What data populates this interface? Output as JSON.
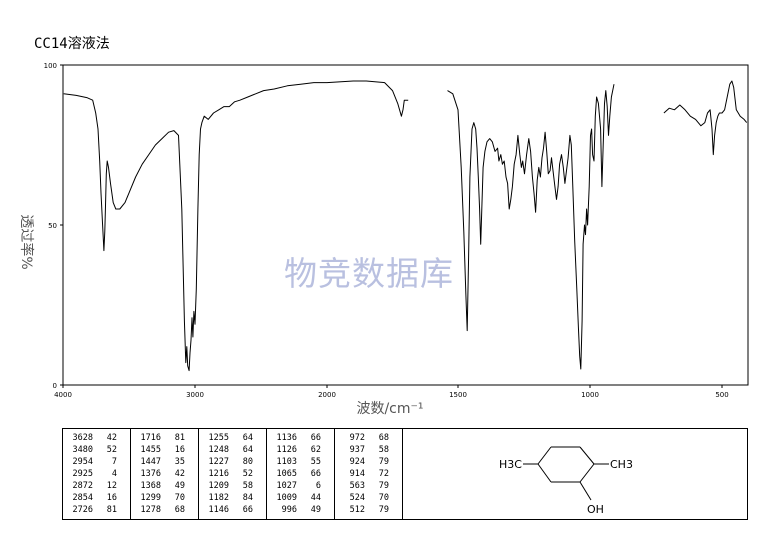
{
  "title": "CC14溶液法",
  "watermark": "物竞数据库",
  "chart_data": {
    "type": "line",
    "xlabel": "波数/cm⁻¹",
    "ylabel": "透过率%",
    "xlim": [
      4000,
      400
    ],
    "ylim": [
      0,
      100
    ],
    "x_ticks": [
      "4000",
      "3000",
      "2000",
      "1500",
      "1000",
      "500"
    ],
    "y_ticks": [
      "100",
      "50",
      "0"
    ],
    "grid": false,
    "series": [
      {
        "points": [
          [
            3995,
            91
          ],
          [
            3900,
            90.5
          ],
          [
            3820,
            89.8
          ],
          [
            3775,
            89
          ],
          [
            3752,
            85
          ],
          [
            3735,
            80
          ],
          [
            3722,
            70
          ],
          [
            3712,
            60
          ],
          [
            3700,
            50
          ],
          [
            3690,
            42
          ],
          [
            3683,
            48
          ],
          [
            3678,
            56
          ],
          [
            3672,
            66
          ],
          [
            3665,
            70
          ],
          [
            3655,
            68
          ],
          [
            3640,
            63
          ],
          [
            3620,
            57
          ],
          [
            3600,
            55
          ],
          [
            3570,
            55
          ],
          [
            3530,
            57
          ],
          [
            3490,
            61
          ],
          [
            3450,
            65
          ],
          [
            3400,
            69
          ],
          [
            3350,
            72
          ],
          [
            3300,
            75
          ],
          [
            3250,
            77
          ],
          [
            3200,
            79
          ],
          [
            3160,
            79.5
          ],
          [
            3125,
            78
          ],
          [
            3100,
            55
          ],
          [
            3080,
            20
          ],
          [
            3070,
            7
          ],
          [
            3062,
            12
          ],
          [
            3055,
            6
          ],
          [
            3045,
            4.5
          ],
          [
            3038,
            10
          ],
          [
            3030,
            14
          ],
          [
            3023,
            21
          ],
          [
            3016,
            15
          ],
          [
            3008,
            23
          ],
          [
            3000,
            19
          ],
          [
            2990,
            30
          ],
          [
            2978,
            55
          ],
          [
            2968,
            72
          ],
          [
            2958,
            80
          ],
          [
            2948,
            82
          ],
          [
            2930,
            84
          ],
          [
            2900,
            83
          ],
          [
            2860,
            85
          ],
          [
            2820,
            86
          ],
          [
            2780,
            87
          ],
          [
            2740,
            87
          ],
          [
            2700,
            88.5
          ],
          [
            2660,
            89
          ],
          [
            2600,
            90
          ],
          [
            2540,
            91
          ],
          [
            2480,
            92
          ],
          [
            2400,
            92.5
          ],
          [
            2300,
            93.5
          ],
          [
            2200,
            94
          ],
          [
            2100,
            94.5
          ],
          [
            2000,
            94.5
          ],
          [
            1900,
            95
          ],
          [
            1850,
            95
          ],
          [
            1780,
            94.5
          ],
          [
            1750,
            92
          ],
          [
            1730,
            88
          ],
          [
            1716,
            84
          ],
          [
            1710,
            86
          ],
          [
            1705,
            89
          ],
          [
            1690,
            89
          ]
        ]
      },
      {
        "points": [
          [
            1540,
            92
          ],
          [
            1520,
            91
          ],
          [
            1500,
            86
          ],
          [
            1488,
            68
          ],
          [
            1478,
            48
          ],
          [
            1470,
            28
          ],
          [
            1465,
            17
          ],
          [
            1460,
            40
          ],
          [
            1455,
            65
          ],
          [
            1447,
            80
          ],
          [
            1440,
            82
          ],
          [
            1433,
            80
          ],
          [
            1428,
            74
          ],
          [
            1423,
            65
          ],
          [
            1418,
            55
          ],
          [
            1414,
            44
          ],
          [
            1410,
            55
          ],
          [
            1405,
            68
          ],
          [
            1398,
            73
          ],
          [
            1390,
            76
          ],
          [
            1380,
            77
          ],
          [
            1370,
            76
          ],
          [
            1360,
            73
          ],
          [
            1350,
            74
          ],
          [
            1345,
            70
          ],
          [
            1338,
            72
          ],
          [
            1332,
            69
          ],
          [
            1325,
            70
          ],
          [
            1318,
            65
          ],
          [
            1312,
            63
          ],
          [
            1306,
            55
          ],
          [
            1300,
            58
          ],
          [
            1294,
            62
          ],
          [
            1287,
            69
          ],
          [
            1280,
            72
          ],
          [
            1273,
            78
          ],
          [
            1266,
            72
          ],
          [
            1260,
            68
          ],
          [
            1255,
            70
          ],
          [
            1248,
            66
          ],
          [
            1240,
            72
          ],
          [
            1232,
            77
          ],
          [
            1225,
            73
          ],
          [
            1218,
            65
          ],
          [
            1212,
            60
          ],
          [
            1206,
            54
          ],
          [
            1200,
            64
          ],
          [
            1194,
            68
          ],
          [
            1188,
            65
          ],
          [
            1182,
            71
          ],
          [
            1176,
            74
          ],
          [
            1170,
            79
          ],
          [
            1164,
            73
          ],
          [
            1158,
            66
          ],
          [
            1151,
            67
          ],
          [
            1146,
            71
          ],
          [
            1140,
            67
          ],
          [
            1133,
            62
          ],
          [
            1127,
            58
          ],
          [
            1121,
            62
          ],
          [
            1115,
            69
          ],
          [
            1108,
            72
          ],
          [
            1101,
            68
          ],
          [
            1095,
            63
          ],
          [
            1089,
            67
          ],
          [
            1083,
            71
          ],
          [
            1076,
            78
          ],
          [
            1071,
            75
          ],
          [
            1065,
            62
          ],
          [
            1058,
            45
          ],
          [
            1050,
            30
          ],
          [
            1044,
            18
          ],
          [
            1039,
            9
          ],
          [
            1035,
            5
          ],
          [
            1030,
            20
          ],
          [
            1026,
            44
          ],
          [
            1021,
            50
          ],
          [
            1017,
            47
          ],
          [
            1013,
            55
          ],
          [
            1009,
            50
          ],
          [
            1003,
            62
          ],
          [
            998,
            78
          ],
          [
            994,
            80
          ],
          [
            990,
            72
          ],
          [
            985,
            70
          ],
          [
            980,
            84
          ],
          [
            975,
            90
          ],
          [
            968,
            88
          ],
          [
            960,
            80
          ],
          [
            955,
            62
          ],
          [
            950,
            75
          ],
          [
            945,
            88
          ],
          [
            940,
            92
          ],
          [
            935,
            87
          ],
          [
            930,
            78
          ],
          [
            925,
            84
          ],
          [
            919,
            90
          ],
          [
            914,
            92
          ],
          [
            909,
            94
          ]
        ]
      },
      {
        "points": [
          [
            720,
            85
          ],
          [
            700,
            86.5
          ],
          [
            680,
            86
          ],
          [
            660,
            87.5
          ],
          [
            640,
            86
          ],
          [
            620,
            84
          ],
          [
            600,
            83
          ],
          [
            580,
            81
          ],
          [
            565,
            82
          ],
          [
            555,
            85
          ],
          [
            545,
            86
          ],
          [
            538,
            80
          ],
          [
            533,
            72
          ],
          [
            528,
            78
          ],
          [
            522,
            82
          ],
          [
            516,
            84
          ],
          [
            510,
            85
          ],
          [
            500,
            85
          ],
          [
            490,
            86
          ],
          [
            480,
            90
          ],
          [
            470,
            94
          ],
          [
            462,
            95
          ],
          [
            455,
            93
          ],
          [
            445,
            86
          ],
          [
            430,
            84
          ],
          [
            415,
            83
          ],
          [
            405,
            82
          ]
        ]
      }
    ],
    "peak_table": [
      [
        [
          "3628",
          "42"
        ],
        [
          "3480",
          "52"
        ],
        [
          "2954",
          "7"
        ],
        [
          "2925",
          "4"
        ],
        [
          "2872",
          "12"
        ],
        [
          "2854",
          "16"
        ],
        [
          "2726",
          "81"
        ]
      ],
      [
        [
          "1716",
          "81"
        ],
        [
          "1455",
          "16"
        ],
        [
          "1447",
          "35"
        ],
        [
          "1376",
          "42"
        ],
        [
          "1368",
          "49"
        ],
        [
          "1299",
          "70"
        ],
        [
          "1278",
          "68"
        ]
      ],
      [
        [
          "1255",
          "64"
        ],
        [
          "1248",
          "64"
        ],
        [
          "1227",
          "80"
        ],
        [
          "1216",
          "52"
        ],
        [
          "1209",
          "58"
        ],
        [
          "1182",
          "84"
        ],
        [
          "1146",
          "66"
        ]
      ],
      [
        [
          "1136",
          "66"
        ],
        [
          "1126",
          "62"
        ],
        [
          "1103",
          "55"
        ],
        [
          "1065",
          "66"
        ],
        [
          "1027",
          "6"
        ],
        [
          "1009",
          "44"
        ],
        [
          "996",
          "49"
        ]
      ],
      [
        [
          "972",
          "68"
        ],
        [
          "937",
          "58"
        ],
        [
          "924",
          "79"
        ],
        [
          "914",
          "72"
        ],
        [
          "563",
          "79"
        ],
        [
          "524",
          "70"
        ],
        [
          "512",
          "79"
        ]
      ]
    ]
  },
  "structure": {
    "left_group": "H3C",
    "right_group": "CH3",
    "bottom_group": "OH"
  }
}
